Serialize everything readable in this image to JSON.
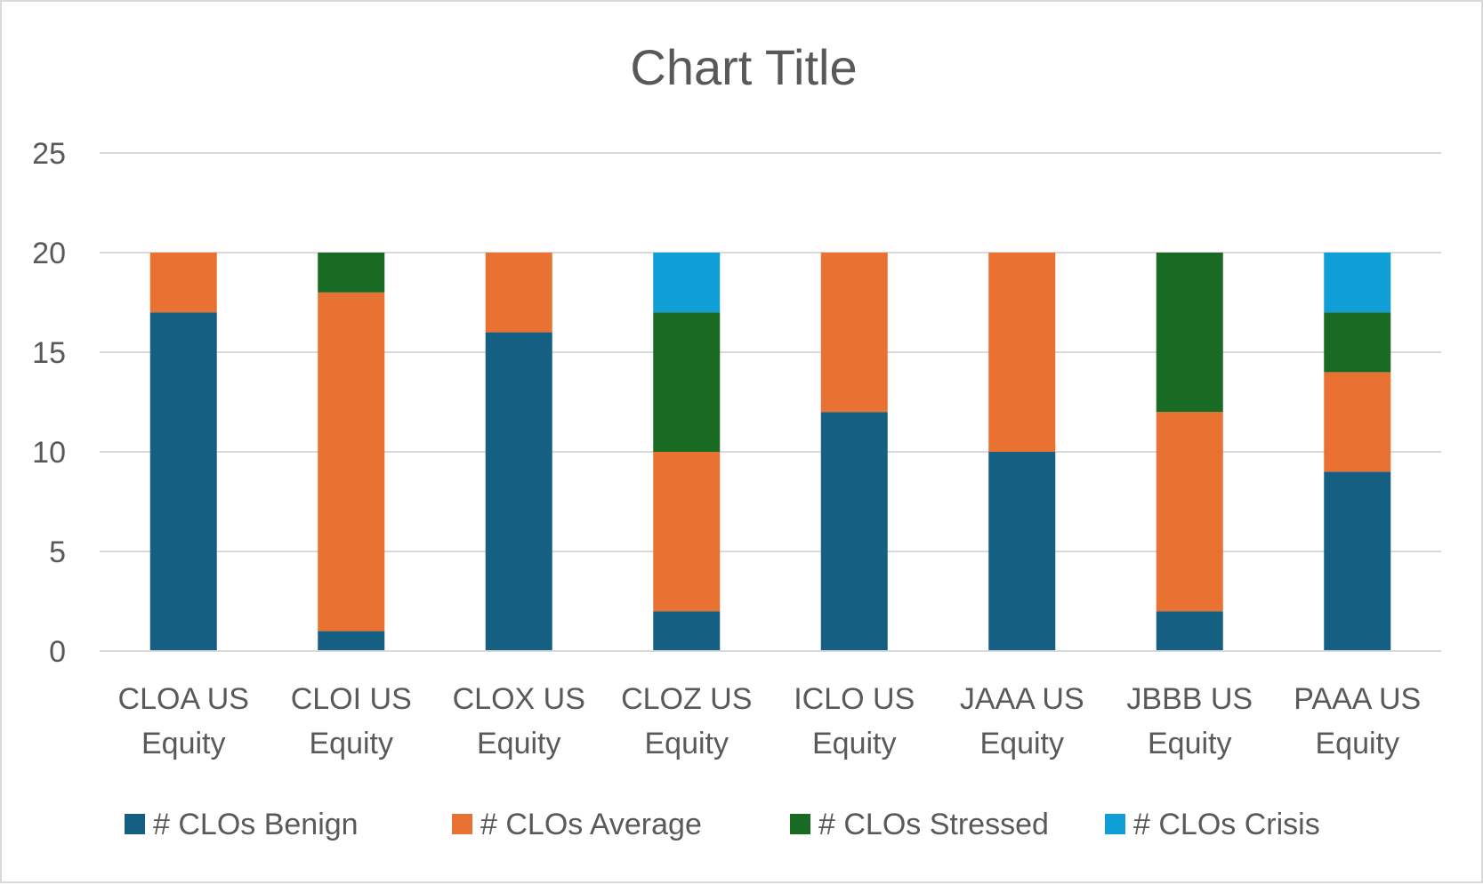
{
  "chart_data": {
    "type": "bar",
    "stacked": true,
    "title": "Chart Title",
    "xlabel": "",
    "ylabel": "",
    "ylim": [
      0,
      25
    ],
    "yticks": [
      0,
      5,
      10,
      15,
      20,
      25
    ],
    "grid": true,
    "legend_position": "bottom",
    "categories": [
      [
        "CLOA US",
        "Equity"
      ],
      [
        "CLOI US",
        "Equity"
      ],
      [
        "CLOX US",
        "Equity"
      ],
      [
        "CLOZ US",
        "Equity"
      ],
      [
        "ICLO US",
        "Equity"
      ],
      [
        "JAAA US",
        "Equity"
      ],
      [
        "JBBB US",
        "Equity"
      ],
      [
        "PAAA US",
        "Equity"
      ]
    ],
    "series": [
      {
        "name": "# CLOs Benign",
        "color": "#156082",
        "values": [
          17,
          1,
          16,
          2,
          12,
          10,
          2,
          9
        ]
      },
      {
        "name": "# CLOs Average",
        "color": "#E97132",
        "values": [
          3,
          17,
          4,
          8,
          8,
          10,
          10,
          5
        ]
      },
      {
        "name": "# CLOs Stressed",
        "color": "#196B24",
        "values": [
          0,
          2,
          0,
          7,
          0,
          0,
          8,
          3
        ]
      },
      {
        "name": "# CLOs Crisis",
        "color": "#0F9ED5",
        "values": [
          0,
          0,
          0,
          3,
          0,
          0,
          0,
          3
        ]
      }
    ]
  }
}
